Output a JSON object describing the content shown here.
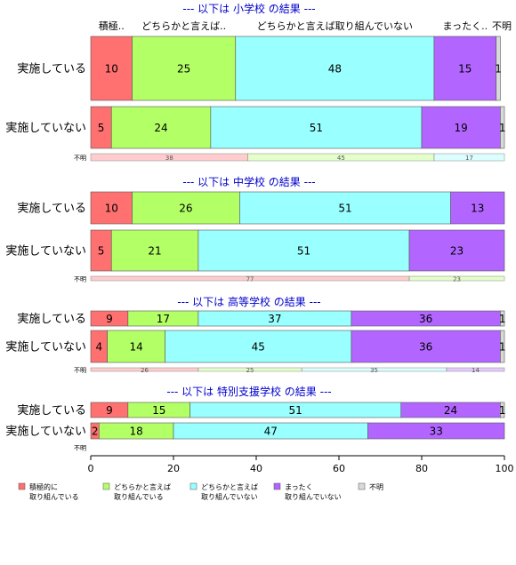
{
  "chart_data": {
    "type": "bar",
    "orientation": "horizontal",
    "stacked": true,
    "xlim": [
      0,
      100
    ],
    "x_ticks": [
      "0",
      "20",
      "40",
      "60",
      "80",
      "100"
    ],
    "series": [
      {
        "name": "積極的に\n取り組んでいる",
        "short": "積極..",
        "color": "#ff7070"
      },
      {
        "name": "どちらかと言えば\n取り組んでいる",
        "short": "どちらかと言えば..",
        "color": "#b3ff66"
      },
      {
        "name": "どちらかと言えば\n取り組んでいない",
        "short": "どちらかと言えば取り組んでいない",
        "color": "#99ffff"
      },
      {
        "name": "まったく\n取り組んでいない",
        "short": "まったく..",
        "color": "#b266ff"
      },
      {
        "name": "不明",
        "short": "不明",
        "color": "#d9d9d9"
      }
    ],
    "panels": [
      {
        "title": "--- 以下は 小学校 の結果 ---",
        "rows": [
          {
            "label": "実施している",
            "values": [
              10,
              25,
              48,
              15,
              1
            ]
          },
          {
            "label": "実施していない",
            "values": [
              5,
              24,
              51,
              19,
              1
            ]
          }
        ],
        "unknown_label": "不明",
        "unknown_values": [
          38,
          45,
          17
        ]
      },
      {
        "title": "--- 以下は 中学校 の結果 ---",
        "rows": [
          {
            "label": "実施している",
            "values": [
              10,
              26,
              51,
              13,
              0
            ]
          },
          {
            "label": "実施していない",
            "values": [
              5,
              21,
              51,
              23,
              0
            ]
          }
        ],
        "unknown_label": "不明",
        "unknown_values": [
          77,
          23
        ]
      },
      {
        "title": "--- 以下は 高等学校 の結果 ---",
        "rows": [
          {
            "label": "実施している",
            "values": [
              9,
              17,
              37,
              36,
              1
            ]
          },
          {
            "label": "実施していない",
            "values": [
              4,
              14,
              45,
              36,
              1
            ]
          }
        ],
        "unknown_label": "不明",
        "unknown_values": [
          26,
          25,
          35,
          14
        ]
      },
      {
        "title": "--- 以下は 特別支援学校 の結果 ---",
        "rows": [
          {
            "label": "実施している",
            "values": [
              9,
              15,
              51,
              24,
              1
            ]
          },
          {
            "label": "実施していない",
            "values": [
              2,
              18,
              47,
              33,
              0
            ]
          }
        ],
        "unknown_label": "不明",
        "unknown_values": []
      }
    ]
  }
}
